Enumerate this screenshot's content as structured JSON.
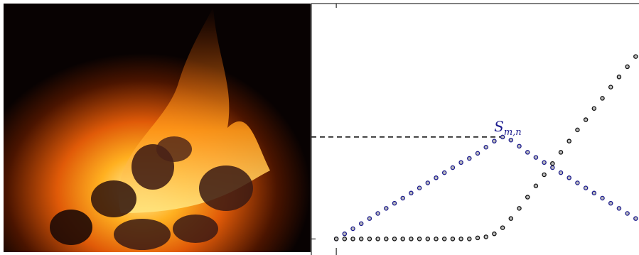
{
  "chart_data": {
    "type": "scatter",
    "x": [
      0,
      0.05,
      0.1,
      0.15,
      0.2,
      0.25,
      0.3,
      0.35,
      0.4,
      0.45,
      0.5,
      0.55,
      0.6,
      0.65,
      0.7,
      0.75,
      0.8,
      0.85,
      0.9,
      0.95,
      1.0,
      1.05,
      1.1,
      1.15,
      1.2,
      1.25,
      1.3,
      1.35,
      1.4,
      1.45,
      1.5,
      1.55,
      1.6,
      1.65,
      1.7,
      1.75,
      1.8
    ],
    "series": [
      {
        "color": "#1c1c8f",
        "values": [
          0,
          0.05,
          0.1,
          0.15,
          0.2,
          0.25,
          0.3,
          0.35,
          0.4,
          0.45,
          0.5,
          0.55,
          0.6,
          0.65,
          0.7,
          0.75,
          0.79,
          0.84,
          0.9,
          0.96,
          1.0,
          0.97,
          0.91,
          0.85,
          0.8,
          0.75,
          0.7,
          0.65,
          0.6,
          0.55,
          0.5,
          0.45,
          0.4,
          0.35,
          0.3,
          0.25,
          0.2
        ]
      },
      {
        "color": "#111111",
        "values": [
          0,
          0,
          0,
          0,
          0,
          0,
          0,
          0,
          0,
          0,
          0,
          0,
          0,
          0,
          0,
          0,
          0,
          0.01,
          0.02,
          0.05,
          0.11,
          0.2,
          0.3,
          0.41,
          0.52,
          0.63,
          0.74,
          0.85,
          0.96,
          1.07,
          1.17,
          1.28,
          1.38,
          1.49,
          1.59,
          1.69,
          1.79
        ]
      }
    ],
    "annotation": {
      "text": "S",
      "subscript": "m,n"
    },
    "hline": {
      "y": 1,
      "x_end": 1
    },
    "xlim": [
      -0.15,
      1.82
    ],
    "ylim": [
      -0.13,
      2.31
    ],
    "xticks": [
      0
    ],
    "yticks": [
      0,
      1
    ]
  }
}
